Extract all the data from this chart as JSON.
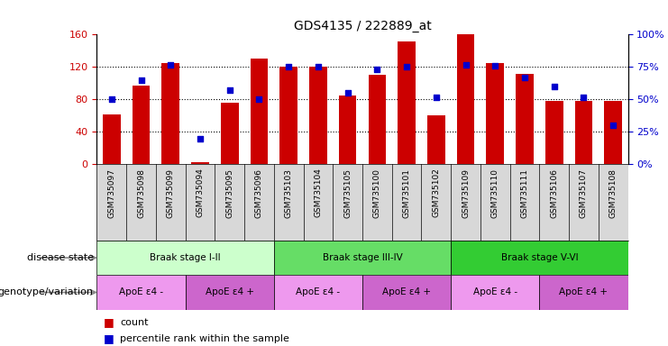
{
  "title": "GDS4135 / 222889_at",
  "samples": [
    "GSM735097",
    "GSM735098",
    "GSM735099",
    "GSM735094",
    "GSM735095",
    "GSM735096",
    "GSM735103",
    "GSM735104",
    "GSM735105",
    "GSM735100",
    "GSM735101",
    "GSM735102",
    "GSM735109",
    "GSM735110",
    "GSM735111",
    "GSM735106",
    "GSM735107",
    "GSM735108"
  ],
  "counts": [
    62,
    97,
    125,
    3,
    76,
    130,
    120,
    120,
    85,
    110,
    152,
    60,
    160,
    125,
    112,
    78,
    78,
    78
  ],
  "percentiles": [
    50,
    65,
    77,
    20,
    57,
    50,
    75,
    75,
    55,
    73,
    75,
    52,
    77,
    76,
    67,
    60,
    52,
    30
  ],
  "ylim_left": [
    0,
    160
  ],
  "ylim_right": [
    0,
    100
  ],
  "yticks_left": [
    0,
    40,
    80,
    120,
    160
  ],
  "yticks_right": [
    0,
    25,
    50,
    75,
    100
  ],
  "bar_color": "#cc0000",
  "dot_color": "#0000cc",
  "grid_color": "#000000",
  "xlabel_bg": "#d8d8d8",
  "disease_state_row": {
    "label": "disease state",
    "groups": [
      {
        "name": "Braak stage I-II",
        "start": 0,
        "end": 6,
        "color": "#ccffcc"
      },
      {
        "name": "Braak stage III-IV",
        "start": 6,
        "end": 12,
        "color": "#66dd66"
      },
      {
        "name": "Braak stage V-VI",
        "start": 12,
        "end": 18,
        "color": "#33cc33"
      }
    ]
  },
  "genotype_row": {
    "label": "genotype/variation",
    "groups": [
      {
        "name": "ApoE ε4 -",
        "start": 0,
        "end": 3,
        "color": "#ee99ee"
      },
      {
        "name": "ApoE ε4 +",
        "start": 3,
        "end": 6,
        "color": "#cc66cc"
      },
      {
        "name": "ApoE ε4 -",
        "start": 6,
        "end": 9,
        "color": "#ee99ee"
      },
      {
        "name": "ApoE ε4 +",
        "start": 9,
        "end": 12,
        "color": "#cc66cc"
      },
      {
        "name": "ApoE ε4 -",
        "start": 12,
        "end": 15,
        "color": "#ee99ee"
      },
      {
        "name": "ApoE ε4 +",
        "start": 15,
        "end": 18,
        "color": "#cc66cc"
      }
    ]
  },
  "tick_label_color_left": "#cc0000",
  "tick_label_color_right": "#0000cc"
}
